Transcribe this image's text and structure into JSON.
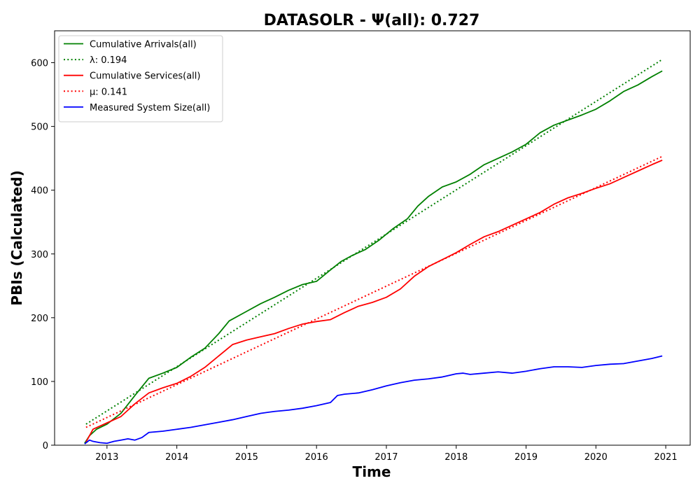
{
  "chart_data": {
    "type": "line",
    "title": "DATASOLR -  Ψ(all): 0.727",
    "xlabel": "Time",
    "ylabel": "PBIs (Calculated)",
    "xlim": [
      2012.25,
      2021.35
    ],
    "ylim": [
      0,
      650
    ],
    "x_ticks": [
      2013,
      2014,
      2015,
      2016,
      2017,
      2018,
      2019,
      2020,
      2021
    ],
    "x_tick_labels": [
      "2013",
      "2014",
      "2015",
      "2016",
      "2017",
      "2018",
      "2019",
      "2020",
      "2021"
    ],
    "y_ticks": [
      0,
      100,
      200,
      300,
      400,
      500,
      600
    ],
    "y_tick_labels": [
      "0",
      "100",
      "200",
      "300",
      "400",
      "500",
      "600"
    ],
    "grid": false,
    "legend_position": "upper-left",
    "series": [
      {
        "name": "Cumulative Arrivals(all)",
        "color": "#008000",
        "style": "solid",
        "x": [
          2012.68,
          2012.75,
          2012.85,
          2013.0,
          2013.2,
          2013.4,
          2013.6,
          2013.8,
          2014.0,
          2014.2,
          2014.4,
          2014.6,
          2014.75,
          2015.0,
          2015.2,
          2015.4,
          2015.6,
          2015.8,
          2016.0,
          2016.2,
          2016.35,
          2016.5,
          2016.7,
          2016.9,
          2017.1,
          2017.3,
          2017.45,
          2017.6,
          2017.8,
          2018.0,
          2018.2,
          2018.4,
          2018.6,
          2018.8,
          2019.0,
          2019.2,
          2019.4,
          2019.6,
          2019.8,
          2020.0,
          2020.2,
          2020.4,
          2020.6,
          2020.8,
          2020.95
        ],
        "values": [
          3,
          15,
          25,
          33,
          50,
          78,
          105,
          113,
          122,
          138,
          152,
          175,
          195,
          210,
          222,
          232,
          243,
          252,
          257,
          275,
          288,
          297,
          307,
          322,
          340,
          355,
          375,
          390,
          405,
          413,
          425,
          440,
          450,
          460,
          472,
          490,
          502,
          510,
          518,
          527,
          540,
          555,
          565,
          578,
          587
        ]
      },
      {
        "name": "λ: 0.194",
        "color": "#008000",
        "style": "dotted",
        "x": [
          2012.7,
          2020.95
        ],
        "values": [
          33,
          605
        ]
      },
      {
        "name": "Cumulative Services(all)",
        "color": "#ff0000",
        "style": "solid",
        "x": [
          2012.7,
          2012.8,
          2013.0,
          2013.2,
          2013.4,
          2013.6,
          2013.8,
          2014.0,
          2014.2,
          2014.4,
          2014.6,
          2014.8,
          2015.0,
          2015.2,
          2015.4,
          2015.6,
          2015.8,
          2016.0,
          2016.2,
          2016.4,
          2016.6,
          2016.8,
          2017.0,
          2017.2,
          2017.4,
          2017.6,
          2017.8,
          2018.0,
          2018.2,
          2018.4,
          2018.6,
          2018.8,
          2019.0,
          2019.2,
          2019.4,
          2019.6,
          2019.8,
          2020.0,
          2020.2,
          2020.4,
          2020.6,
          2020.8,
          2020.95
        ],
        "values": [
          5,
          25,
          35,
          45,
          65,
          82,
          90,
          97,
          108,
          122,
          140,
          158,
          165,
          170,
          175,
          183,
          190,
          194,
          197,
          208,
          218,
          224,
          232,
          245,
          265,
          280,
          291,
          302,
          315,
          327,
          335,
          345,
          355,
          365,
          378,
          388,
          395,
          403,
          410,
          420,
          430,
          440,
          447
        ]
      },
      {
        "name": "μ: 0.141",
        "color": "#ff0000",
        "style": "dotted",
        "x": [
          2012.7,
          2020.95
        ],
        "values": [
          28,
          453
        ]
      },
      {
        "name": "Measured System Size(all)",
        "color": "#0000ff",
        "style": "solid",
        "x": [
          2012.68,
          2012.75,
          2012.8,
          2012.9,
          2013.0,
          2013.1,
          2013.2,
          2013.3,
          2013.4,
          2013.5,
          2013.6,
          2013.8,
          2014.0,
          2014.2,
          2014.4,
          2014.6,
          2014.8,
          2015.0,
          2015.2,
          2015.4,
          2015.6,
          2015.8,
          2016.0,
          2016.2,
          2016.3,
          2016.4,
          2016.6,
          2016.8,
          2017.0,
          2017.2,
          2017.4,
          2017.6,
          2017.8,
          2018.0,
          2018.1,
          2018.2,
          2018.4,
          2018.6,
          2018.8,
          2019.0,
          2019.2,
          2019.4,
          2019.6,
          2019.8,
          2020.0,
          2020.2,
          2020.4,
          2020.6,
          2020.8,
          2020.95
        ],
        "values": [
          2,
          8,
          6,
          4,
          3,
          6,
          8,
          10,
          8,
          12,
          20,
          22,
          25,
          28,
          32,
          36,
          40,
          45,
          50,
          53,
          55,
          58,
          62,
          67,
          78,
          80,
          82,
          87,
          93,
          98,
          102,
          104,
          107,
          112,
          113,
          111,
          113,
          115,
          113,
          116,
          120,
          123,
          123,
          122,
          125,
          127,
          128,
          132,
          136,
          140
        ]
      }
    ]
  }
}
